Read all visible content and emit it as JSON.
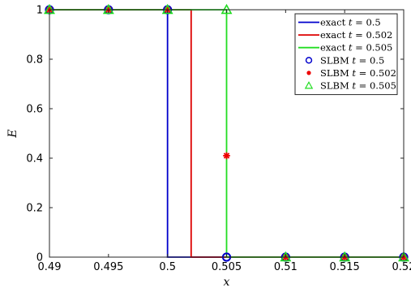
{
  "chart_data": {
    "type": "line",
    "xlabel": "x",
    "ylabel": "E",
    "xlim": [
      0.49,
      0.52
    ],
    "ylim": [
      0,
      1
    ],
    "x_ticks": [
      0.49,
      0.495,
      0.5,
      0.505,
      0.51,
      0.515,
      0.52
    ],
    "x_tick_labels": [
      "0.49",
      "0.495",
      "0.5",
      "0.505",
      "0.51",
      "0.515",
      "0.52"
    ],
    "y_ticks": [
      0,
      0.2,
      0.4,
      0.6,
      0.8,
      1
    ],
    "y_tick_labels": [
      "0",
      "0.2",
      "0.4",
      "0.6",
      "0.8",
      "1"
    ],
    "grid": false,
    "legend_position": "top-right",
    "series": [
      {
        "name": "exact t = 0.5",
        "label_prefix": "exact ",
        "label_var": "t",
        "label_value": " = 0.5",
        "style": "line",
        "color": "#0000cc",
        "x": [
          0.49,
          0.5,
          0.5,
          0.52
        ],
        "y": [
          1,
          1,
          0,
          0
        ]
      },
      {
        "name": "exact t = 0.502",
        "label_prefix": "exact ",
        "label_var": "t",
        "label_value": " = 0.502",
        "style": "line",
        "color": "#dd0000",
        "x": [
          0.49,
          0.502,
          0.502,
          0.52
        ],
        "y": [
          1,
          1,
          0,
          0
        ]
      },
      {
        "name": "exact t = 0.505",
        "label_prefix": "exact ",
        "label_var": "t",
        "label_value": " = 0.505",
        "style": "line",
        "color": "#22dd22",
        "x": [
          0.49,
          0.505,
          0.505,
          0.52
        ],
        "y": [
          1,
          1,
          0,
          0
        ]
      },
      {
        "name": "SLBM t = 0.5",
        "label_prefix": "SLBM ",
        "label_var": "t",
        "label_value": " = 0.5",
        "style": "marker",
        "marker": "circle",
        "color": "#0000cc",
        "x": [
          0.49,
          0.495,
          0.5,
          0.505,
          0.51,
          0.515,
          0.52
        ],
        "y": [
          1,
          1,
          1,
          0,
          0,
          0,
          0
        ]
      },
      {
        "name": "SLBM t = 0.502",
        "label_prefix": "SLBM ",
        "label_var": "t",
        "label_value": " = 0.502",
        "style": "marker",
        "marker": "star",
        "color": "#ee0000",
        "x": [
          0.49,
          0.495,
          0.5,
          0.505,
          0.51,
          0.515,
          0.52
        ],
        "y": [
          1,
          1,
          1,
          0.41,
          0,
          0,
          0
        ]
      },
      {
        "name": "SLBM t = 0.505",
        "label_prefix": "SLBM ",
        "label_var": "t",
        "label_value": " = 0.505",
        "style": "marker",
        "marker": "triangle",
        "color": "#22dd22",
        "x": [
          0.49,
          0.495,
          0.5,
          0.505,
          0.51,
          0.515,
          0.52
        ],
        "y": [
          1,
          1,
          1,
          1,
          0,
          0,
          0
        ]
      }
    ]
  }
}
